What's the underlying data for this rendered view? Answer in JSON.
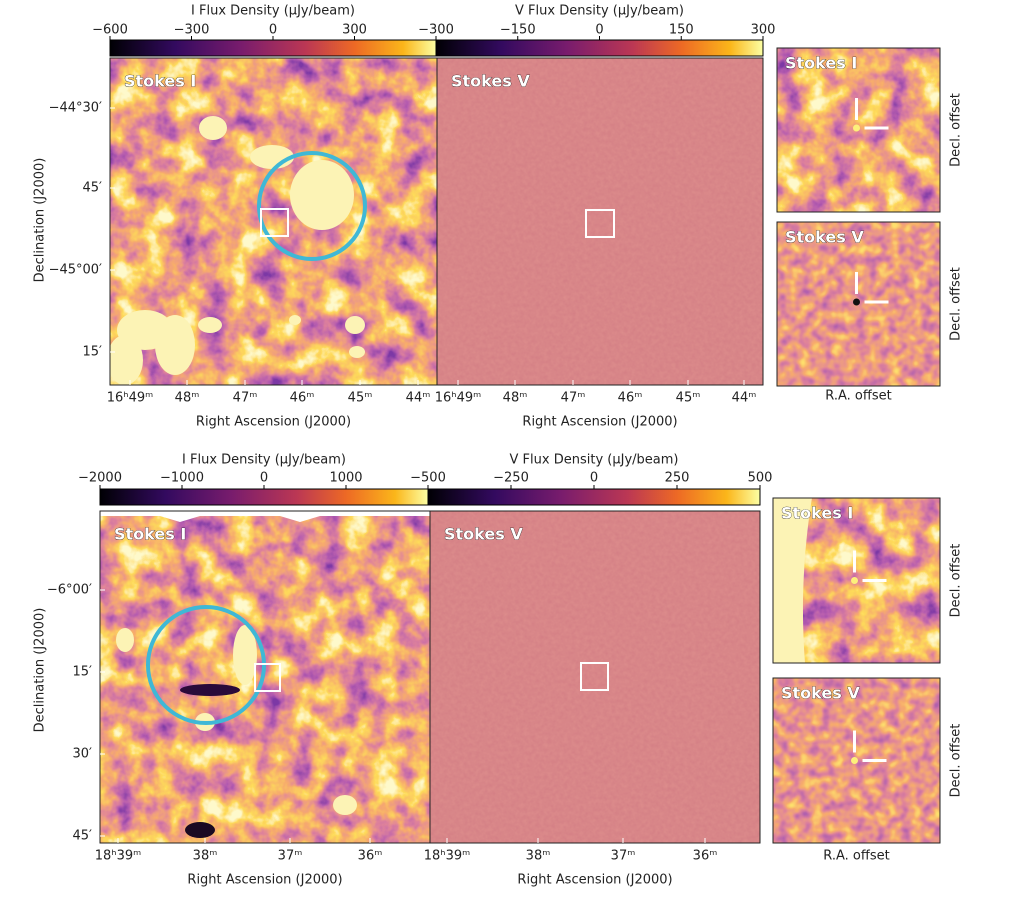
{
  "rows": [
    {
      "colorbars": [
        {
          "label": "I Flux Density (µJy/beam)",
          "ticks": [
            "−600",
            "−300",
            "0",
            "300"
          ]
        },
        {
          "label": "V Flux Density (µJy/beam)",
          "ticks": [
            "−300",
            "−150",
            "0",
            "150",
            "300"
          ]
        }
      ],
      "panels": [
        {
          "label": "Stokes I"
        },
        {
          "label": "Stokes V"
        }
      ],
      "y_axis": {
        "label": "Declination (J2000)",
        "ticks": [
          "−44°30′",
          "45′",
          "−45°00′",
          "15′"
        ]
      },
      "x_axis": {
        "label": "Right Ascension (J2000)",
        "ticks": [
          "16ʰ49ᵐ",
          "48ᵐ",
          "47ᵐ",
          "46ᵐ",
          "45ᵐ",
          "44ᵐ"
        ]
      },
      "insets": [
        {
          "label": "Stokes I",
          "y_label": "Decl. offset"
        },
        {
          "label": "Stokes V",
          "y_label": "Decl. offset"
        }
      ],
      "inset_x_label": "R.A. offset"
    },
    {
      "colorbars": [
        {
          "label": "I Flux Density (µJy/beam)",
          "ticks": [
            "−2000",
            "−1000",
            "0",
            "1000"
          ]
        },
        {
          "label": "V Flux Density (µJy/beam)",
          "ticks": [
            "−500",
            "−250",
            "0",
            "250",
            "500"
          ]
        }
      ],
      "panels": [
        {
          "label": "Stokes I"
        },
        {
          "label": "Stokes V"
        }
      ],
      "y_axis": {
        "label": "Declination (J2000)",
        "ticks": [
          "−6°00′",
          "15′",
          "30′",
          "45′"
        ]
      },
      "x_axis": {
        "label": "Right Ascension (J2000)",
        "ticks": [
          "18ʰ39ᵐ",
          "38ᵐ",
          "37ᵐ",
          "36ᵐ"
        ]
      },
      "insets": [
        {
          "label": "Stokes I",
          "y_label": "Decl. offset"
        },
        {
          "label": "Stokes V",
          "y_label": "Decl. offset"
        }
      ],
      "inset_x_label": "R.A. offset"
    }
  ]
}
